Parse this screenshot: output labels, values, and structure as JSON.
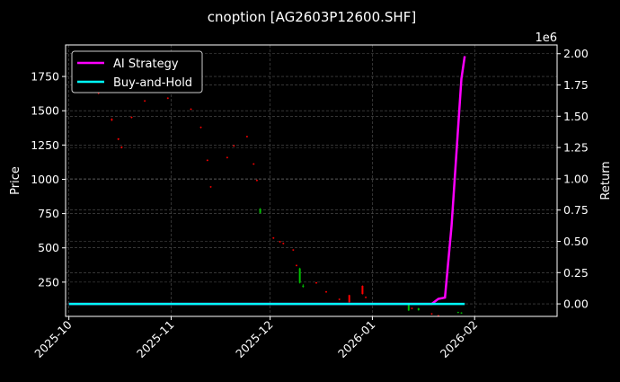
{
  "chart_data": {
    "type": "candlestick+line",
    "title": "cnoption [AG2603P12600.SHF]",
    "ylabel_left": "Price",
    "ylabel_right": "Return",
    "right_offset_label": "1e6",
    "left_ylim": [
      0,
      1980
    ],
    "right_ylim": [
      -0.1,
      2.07
    ],
    "left_ticks": [
      250,
      500,
      750,
      1000,
      1250,
      1500,
      1750
    ],
    "left_tick_labels": [
      "250",
      "500",
      "750",
      "1000",
      "1250",
      "1500",
      "1750"
    ],
    "right_ticks": [
      0,
      0.25,
      0.5,
      0.75,
      1.0,
      1.25,
      1.5,
      1.75,
      2.0
    ],
    "right_tick_labels": [
      "0.00",
      "0.25",
      "0.50",
      "0.75",
      "1.00",
      "1.25",
      "1.50",
      "1.75",
      "2.00"
    ],
    "x_range": [
      "2025-09-30",
      "2026-02-26"
    ],
    "x_ticks": [
      "2025-10-01",
      "2025-11-01",
      "2025-12-01",
      "2026-01-01",
      "2026-02-01"
    ],
    "x_tick_labels": [
      "2025-10",
      "2025-11",
      "2025-12",
      "2026-01",
      "2026-02"
    ],
    "grid": true,
    "legend_position": "top-left",
    "legend": [
      {
        "label": "AI Strategy",
        "color": "#ff00ff"
      },
      {
        "label": "Buy-and-Hold",
        "color": "#00ffff"
      }
    ],
    "colors": {
      "up": "#00c000",
      "down": "#ff0000",
      "ai": "#ff00ff",
      "bh": "#00ffff"
    },
    "candles": [
      [
        "2025-10-10",
        1635,
        1640,
        1620,
        1627
      ],
      [
        "2025-10-14",
        1440,
        1445,
        1425,
        1430
      ],
      [
        "2025-10-16",
        1298,
        1300,
        1285,
        1290
      ],
      [
        "2025-10-17",
        1238,
        1240,
        1225,
        1230
      ],
      [
        "2025-10-20",
        1455,
        1458,
        1445,
        1450
      ],
      [
        "2025-10-24",
        1575,
        1578,
        1565,
        1570
      ],
      [
        "2025-10-27",
        1642,
        1645,
        1632,
        1637
      ],
      [
        "2025-10-31",
        1595,
        1598,
        1585,
        1590
      ],
      [
        "2025-11-07",
        1515,
        1518,
        1505,
        1510
      ],
      [
        "2025-11-10",
        1382,
        1385,
        1372,
        1377
      ],
      [
        "2025-11-12",
        1142,
        1145,
        1132,
        1137
      ],
      [
        "2025-11-13",
        948,
        950,
        938,
        943
      ],
      [
        "2025-11-18",
        1162,
        1165,
        1152,
        1157
      ],
      [
        "2025-11-20",
        1248,
        1250,
        1238,
        1243
      ],
      [
        "2025-11-24",
        1315,
        1318,
        1305,
        1310
      ],
      [
        "2025-11-26",
        1115,
        1118,
        1105,
        1110
      ],
      [
        "2025-11-27",
        995,
        998,
        985,
        990
      ],
      [
        "2025-11-28",
        755,
        790,
        750,
        785
      ],
      [
        "2025-12-02",
        575,
        578,
        565,
        570
      ],
      [
        "2025-12-04",
        548,
        550,
        538,
        543
      ],
      [
        "2025-12-05",
        535,
        538,
        525,
        530
      ],
      [
        "2025-12-08",
        488,
        490,
        478,
        483
      ],
      [
        "2025-12-09",
        375,
        378,
        365,
        370
      ],
      [
        "2025-12-10",
        245,
        355,
        240,
        350
      ],
      [
        "2025-12-11",
        215,
        235,
        210,
        225
      ],
      [
        "2025-12-15",
        248,
        250,
        238,
        243
      ],
      [
        "2025-12-18",
        182,
        185,
        172,
        177
      ],
      [
        "2025-12-22",
        128,
        130,
        118,
        123
      ],
      [
        "2025-12-25",
        155,
        158,
        100,
        103
      ],
      [
        "2025-12-29",
        223,
        226,
        160,
        163
      ],
      [
        "2025-12-30",
        142,
        145,
        132,
        137
      ],
      [
        "2026-01-05",
        95,
        98,
        85,
        90
      ],
      [
        "2026-01-12",
        43,
        92,
        40,
        90
      ],
      [
        "2026-01-13",
        62,
        64,
        52,
        57
      ],
      [
        "2026-01-15",
        45,
        62,
        42,
        60
      ],
      [
        "2026-01-19",
        22,
        24,
        12,
        17
      ],
      [
        "2026-01-21",
        8,
        10,
        2,
        4
      ],
      [
        "2026-01-27",
        30,
        34,
        24,
        32
      ],
      [
        "2026-01-28",
        25,
        30,
        20,
        28
      ]
    ],
    "ai_strategy": {
      "dates": [
        "2025-10-01",
        "2026-01-19",
        "2026-01-21",
        "2026-01-23",
        "2026-01-25",
        "2026-01-28",
        "2026-01-29"
      ],
      "values": [
        0,
        0,
        0.04,
        0.05,
        0.62,
        1.8,
        1.98
      ]
    },
    "buy_and_hold": {
      "dates": [
        "2025-10-01",
        "2026-01-29"
      ],
      "values": [
        0,
        0
      ]
    }
  }
}
